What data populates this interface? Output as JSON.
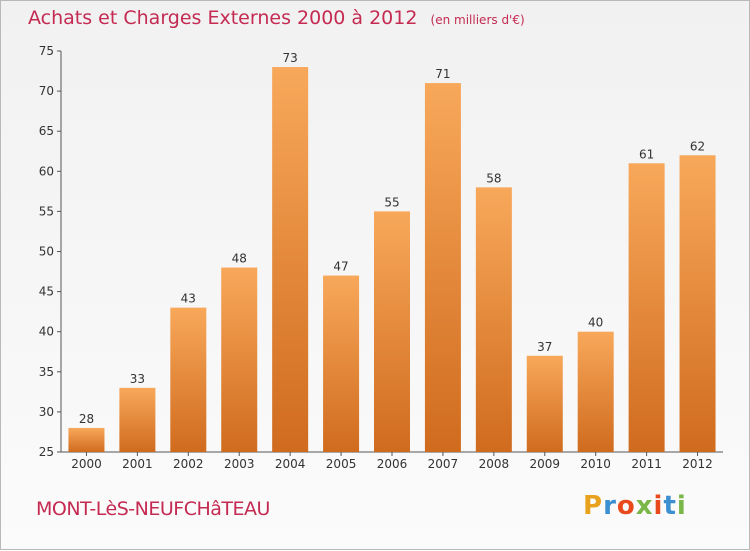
{
  "header": {
    "title": "Achats et Charges Externes 2000 à 2012",
    "subtitle": "(en milliers d'€)"
  },
  "footer": {
    "commune": "MONT-LèS-NEUFCHâTEAU",
    "brand": "Proxiti",
    "brand_colors": [
      "#e8a21d",
      "#3c8fd0",
      "#e8491d",
      "#7ab648",
      "#e8491d",
      "#3c8fd0",
      "#7ab648"
    ]
  },
  "colors": {
    "bar_top": "#f8a85a",
    "bar_bottom": "#d06b1e",
    "title": "#c42a52"
  },
  "chart_data": {
    "type": "bar",
    "categories": [
      "2000",
      "2001",
      "2002",
      "2003",
      "2004",
      "2005",
      "2006",
      "2007",
      "2008",
      "2009",
      "2010",
      "2011",
      "2012"
    ],
    "values": [
      28,
      33,
      43,
      48,
      73,
      47,
      55,
      71,
      58,
      37,
      40,
      61,
      62
    ],
    "ylim": [
      25,
      75
    ],
    "yticks": [
      25,
      30,
      35,
      40,
      45,
      50,
      55,
      60,
      65,
      70,
      75
    ],
    "grid": false,
    "xlabel": "",
    "ylabel": ""
  }
}
